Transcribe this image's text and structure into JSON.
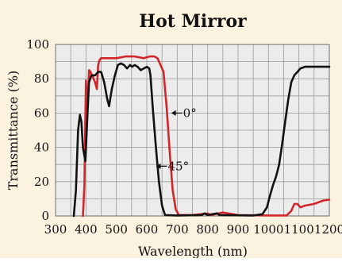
{
  "chart_data": {
    "type": "line",
    "title": "Hot Mirror",
    "xlabel": "Wavelength (nm)",
    "ylabel": "Transmittance (%)",
    "xlim": [
      300,
      1200
    ],
    "ylim": [
      0,
      100
    ],
    "x_ticks": [
      300,
      400,
      500,
      600,
      700,
      800,
      900,
      1000,
      1100,
      1200
    ],
    "y_ticks": [
      0,
      20,
      40,
      60,
      80,
      100
    ],
    "grid": true,
    "series": [
      {
        "name": "0°",
        "color": "#d2262b",
        "points": [
          [
            390,
            0
          ],
          [
            395,
            18
          ],
          [
            400,
            79
          ],
          [
            405,
            62
          ],
          [
            410,
            85
          ],
          [
            415,
            84
          ],
          [
            420,
            82
          ],
          [
            430,
            78
          ],
          [
            436,
            74
          ],
          [
            440,
            88
          ],
          [
            445,
            91
          ],
          [
            450,
            92
          ],
          [
            470,
            92
          ],
          [
            500,
            92
          ],
          [
            530,
            93
          ],
          [
            560,
            93
          ],
          [
            590,
            92
          ],
          [
            610,
            93
          ],
          [
            625,
            93
          ],
          [
            635,
            92
          ],
          [
            645,
            88
          ],
          [
            655,
            84
          ],
          [
            665,
            64
          ],
          [
            675,
            38
          ],
          [
            685,
            15
          ],
          [
            695,
            4
          ],
          [
            705,
            0.5
          ],
          [
            750,
            0.5
          ],
          [
            800,
            1.5
          ],
          [
            810,
            0.5
          ],
          [
            850,
            2
          ],
          [
            900,
            0.5
          ],
          [
            1000,
            0.3
          ],
          [
            1060,
            0.3
          ],
          [
            1075,
            3
          ],
          [
            1085,
            7
          ],
          [
            1095,
            7
          ],
          [
            1105,
            5
          ],
          [
            1120,
            6
          ],
          [
            1150,
            7
          ],
          [
            1180,
            9
          ],
          [
            1200,
            9.5
          ]
        ]
      },
      {
        "name": "45°",
        "color": "#111111",
        "points": [
          [
            360,
            0
          ],
          [
            367,
            15
          ],
          [
            374,
            50
          ],
          [
            380,
            59
          ],
          [
            385,
            55
          ],
          [
            390,
            40
          ],
          [
            398,
            32
          ],
          [
            405,
            60
          ],
          [
            410,
            78
          ],
          [
            418,
            82
          ],
          [
            430,
            82
          ],
          [
            440,
            84
          ],
          [
            450,
            84
          ],
          [
            460,
            78
          ],
          [
            470,
            68
          ],
          [
            476,
            64
          ],
          [
            485,
            74
          ],
          [
            495,
            82
          ],
          [
            505,
            88
          ],
          [
            515,
            89
          ],
          [
            525,
            88
          ],
          [
            535,
            86
          ],
          [
            545,
            88
          ],
          [
            552,
            87
          ],
          [
            560,
            88
          ],
          [
            570,
            87
          ],
          [
            580,
            85
          ],
          [
            590,
            86
          ],
          [
            600,
            87
          ],
          [
            608,
            86
          ],
          [
            612,
            82
          ],
          [
            620,
            62
          ],
          [
            630,
            40
          ],
          [
            640,
            20
          ],
          [
            650,
            6
          ],
          [
            660,
            0.5
          ],
          [
            700,
            0.3
          ],
          [
            780,
            0.5
          ],
          [
            790,
            1.5
          ],
          [
            800,
            0.5
          ],
          [
            830,
            1.5
          ],
          [
            840,
            0.5
          ],
          [
            950,
            0.3
          ],
          [
            980,
            1
          ],
          [
            995,
            5
          ],
          [
            1005,
            12
          ],
          [
            1015,
            18
          ],
          [
            1025,
            23
          ],
          [
            1035,
            30
          ],
          [
            1045,
            42
          ],
          [
            1055,
            55
          ],
          [
            1065,
            68
          ],
          [
            1075,
            78
          ],
          [
            1085,
            82
          ],
          [
            1095,
            84
          ],
          [
            1105,
            86
          ],
          [
            1120,
            87
          ],
          [
            1160,
            87
          ],
          [
            1200,
            87
          ]
        ]
      }
    ],
    "annotations": [
      {
        "text": "0°",
        "series": "0°",
        "arrow_at": [
          680,
          60
        ],
        "direction": "right"
      },
      {
        "text": "45°",
        "series": "45°",
        "arrow_at": [
          630,
          29
        ],
        "direction": "right"
      }
    ]
  }
}
